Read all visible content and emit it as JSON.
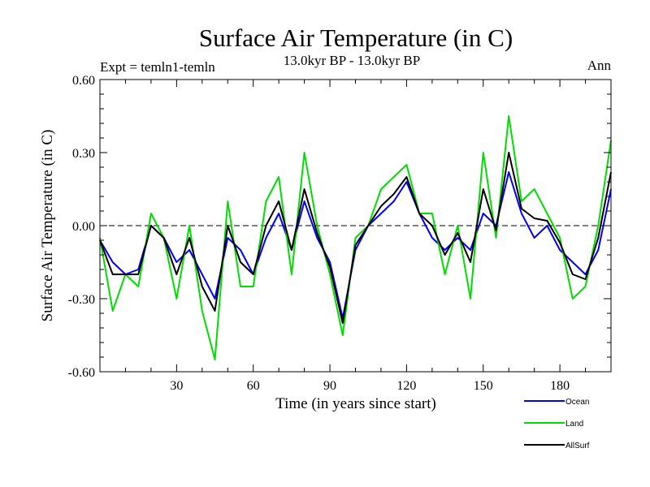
{
  "chart_data": {
    "type": "line",
    "title": "Surface Air Temperature (in C)",
    "subtitle": "13.0kyr BP - 13.0kyr BP",
    "left_label": "Expt = temln1-temln",
    "right_label": "Ann",
    "xlabel": "Time (in years since start)",
    "ylabel": "Surface Air Temperature (in C)",
    "xlim": [
      0,
      200
    ],
    "ylim": [
      -0.6,
      0.6
    ],
    "x_ticks": [
      30,
      60,
      90,
      120,
      150,
      180
    ],
    "x_tick_labels": [
      "30",
      "60",
      "90",
      "120",
      "150",
      "180"
    ],
    "y_ticks": [
      -0.6,
      -0.3,
      0.0,
      0.3,
      0.6
    ],
    "y_tick_labels": [
      "-0.60",
      "-0.30",
      "0.00",
      "0.30",
      "0.60"
    ],
    "zero_line": true,
    "legend_position": "bottom-right",
    "series": [
      {
        "name": "Ocean",
        "color": "#0000ff",
        "x": [
          0,
          5,
          10,
          15,
          20,
          25,
          30,
          35,
          40,
          45,
          50,
          55,
          60,
          65,
          70,
          75,
          80,
          85,
          90,
          95,
          100,
          105,
          110,
          115,
          120,
          125,
          130,
          135,
          140,
          145,
          150,
          155,
          160,
          165,
          170,
          175,
          180,
          185,
          190,
          195,
          200
        ],
        "values": [
          -0.06,
          -0.15,
          -0.2,
          -0.18,
          0.0,
          -0.05,
          -0.15,
          -0.1,
          -0.2,
          -0.3,
          -0.05,
          -0.1,
          -0.2,
          -0.05,
          0.05,
          -0.1,
          0.1,
          -0.05,
          -0.15,
          -0.38,
          -0.1,
          0.0,
          0.05,
          0.1,
          0.18,
          0.05,
          -0.05,
          -0.1,
          -0.05,
          -0.1,
          0.05,
          0.0,
          0.22,
          0.05,
          -0.05,
          0.0,
          -0.1,
          -0.15,
          -0.2,
          -0.1,
          0.15
        ]
      },
      {
        "name": "Land",
        "color": "#00dd00",
        "x": [
          0,
          5,
          10,
          15,
          20,
          25,
          30,
          35,
          40,
          45,
          50,
          55,
          60,
          65,
          70,
          75,
          80,
          85,
          90,
          95,
          100,
          105,
          110,
          115,
          120,
          125,
          130,
          135,
          140,
          145,
          150,
          155,
          160,
          165,
          170,
          175,
          180,
          185,
          190,
          195,
          200
        ],
        "values": [
          -0.05,
          -0.35,
          -0.2,
          -0.25,
          0.05,
          -0.05,
          -0.3,
          0.0,
          -0.35,
          -0.55,
          0.1,
          -0.25,
          -0.25,
          0.1,
          0.2,
          -0.2,
          0.3,
          0.0,
          -0.2,
          -0.45,
          -0.05,
          0.0,
          0.15,
          0.2,
          0.25,
          0.05,
          0.05,
          -0.2,
          0.0,
          -0.3,
          0.3,
          -0.05,
          0.45,
          0.1,
          0.15,
          0.05,
          -0.05,
          -0.3,
          -0.25,
          0.0,
          0.35
        ]
      },
      {
        "name": "AllSurf",
        "color": "#000000",
        "x": [
          0,
          5,
          10,
          15,
          20,
          25,
          30,
          35,
          40,
          45,
          50,
          55,
          60,
          65,
          70,
          75,
          80,
          85,
          90,
          95,
          100,
          105,
          110,
          115,
          120,
          125,
          130,
          135,
          140,
          145,
          150,
          155,
          160,
          165,
          170,
          175,
          180,
          185,
          190,
          195,
          200
        ],
        "values": [
          -0.06,
          -0.2,
          -0.2,
          -0.2,
          0.0,
          -0.05,
          -0.2,
          -0.05,
          -0.25,
          -0.35,
          0.0,
          -0.15,
          -0.2,
          0.0,
          0.1,
          -0.1,
          0.15,
          -0.03,
          -0.17,
          -0.4,
          -0.08,
          0.0,
          0.08,
          0.13,
          0.2,
          0.05,
          0.0,
          -0.12,
          -0.03,
          -0.15,
          0.15,
          -0.02,
          0.3,
          0.07,
          0.03,
          0.02,
          -0.07,
          -0.2,
          -0.22,
          -0.05,
          0.22
        ]
      }
    ]
  }
}
